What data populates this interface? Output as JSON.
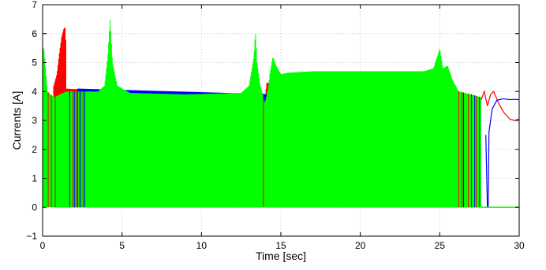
{
  "chart_data": {
    "type": "line",
    "title": "",
    "xlabel": "Time [sec]",
    "ylabel": "Currents [A]",
    "xlim": [
      0,
      30
    ],
    "ylim": [
      -1,
      7
    ],
    "xticks": [
      "0",
      "5",
      "10",
      "15",
      "20",
      "25",
      "30"
    ],
    "yticks": [
      "−1",
      "0",
      "1",
      "2",
      "3",
      "4",
      "5",
      "6",
      "7"
    ],
    "grid": true,
    "legend": "none",
    "colors": {
      "red": "#ff0000",
      "blue": "#0000ff",
      "green": "#00ff00"
    },
    "series": [
      {
        "color": "red",
        "style": "switching",
        "envelope_upper": [
          [
            0.7,
            4.2
          ],
          [
            0.9,
            4.6
          ],
          [
            1.05,
            5.3
          ],
          [
            1.2,
            5.9
          ],
          [
            1.35,
            6.2
          ],
          [
            1.45,
            6.2
          ],
          [
            1.5,
            4.1
          ],
          [
            14.0,
            3.7
          ],
          [
            14.1,
            4.3
          ],
          [
            27.6,
            3.7
          ]
        ],
        "tail": [
          [
            27.6,
            3.7
          ],
          [
            27.8,
            4.0
          ],
          [
            28.0,
            3.5
          ],
          [
            28.2,
            3.9
          ],
          [
            28.4,
            4.0
          ],
          [
            28.7,
            3.6
          ],
          [
            29.0,
            3.3
          ],
          [
            29.4,
            3.05
          ],
          [
            29.7,
            3.0
          ],
          [
            30.0,
            3.05
          ]
        ]
      },
      {
        "color": "blue",
        "style": "switching",
        "envelope_upper": [
          [
            1.0,
            0.4
          ],
          [
            1.4,
            0.4
          ],
          [
            2.2,
            4.1
          ],
          [
            27.5,
            3.7
          ]
        ],
        "tail": [
          [
            27.9,
            2.5
          ],
          [
            28.0,
            0.0
          ],
          [
            28.05,
            0.0
          ],
          [
            28.1,
            2.6
          ],
          [
            28.3,
            3.4
          ],
          [
            28.6,
            3.7
          ],
          [
            29.0,
            3.75
          ],
          [
            29.4,
            3.72
          ],
          [
            29.7,
            3.73
          ],
          [
            30.0,
            3.72
          ]
        ]
      },
      {
        "color": "green",
        "style": "switching",
        "envelope_upper": [
          [
            0.0,
            5.6
          ],
          [
            0.1,
            5.4
          ],
          [
            0.3,
            4.0
          ],
          [
            0.7,
            3.8
          ],
          [
            1.5,
            4.0
          ],
          [
            2.5,
            4.0
          ],
          [
            3.5,
            4.0
          ],
          [
            3.9,
            4.2
          ],
          [
            4.1,
            5.2
          ],
          [
            4.25,
            6.5
          ],
          [
            4.4,
            5.0
          ],
          [
            4.7,
            4.2
          ],
          [
            5.5,
            3.95
          ],
          [
            9.0,
            3.9
          ],
          [
            12.5,
            3.95
          ],
          [
            13.0,
            4.2
          ],
          [
            13.3,
            5.2
          ],
          [
            13.4,
            6.1
          ],
          [
            13.5,
            5.0
          ],
          [
            13.7,
            4.2
          ],
          [
            13.8,
            4.0
          ],
          [
            14.0,
            3.6
          ],
          [
            14.2,
            4.1
          ],
          [
            14.3,
            4.6
          ],
          [
            14.5,
            5.2
          ],
          [
            14.7,
            4.9
          ],
          [
            15.0,
            4.6
          ],
          [
            15.5,
            4.65
          ],
          [
            17.0,
            4.7
          ],
          [
            20.0,
            4.7
          ],
          [
            24.0,
            4.7
          ],
          [
            24.6,
            4.8
          ],
          [
            24.9,
            5.3
          ],
          [
            25.0,
            5.5
          ],
          [
            25.2,
            4.8
          ],
          [
            25.5,
            4.9
          ],
          [
            25.8,
            4.4
          ],
          [
            26.2,
            4.0
          ],
          [
            27.0,
            3.9
          ],
          [
            27.6,
            3.8
          ]
        ],
        "tail": [
          [
            27.6,
            0.0
          ],
          [
            30.0,
            0.0
          ]
        ]
      }
    ]
  }
}
